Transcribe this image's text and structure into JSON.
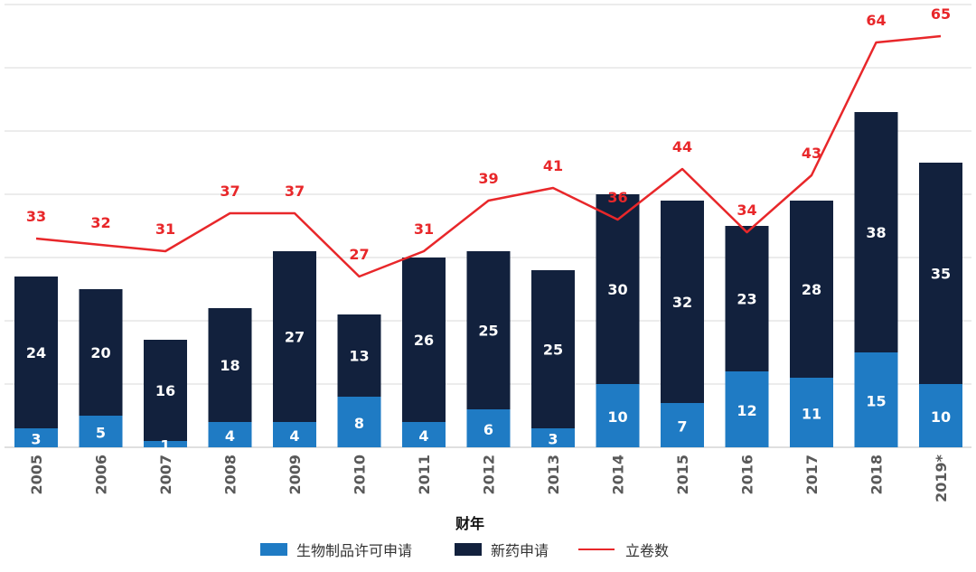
{
  "chart_data": {
    "type": "bar",
    "stacked": true,
    "xlabel": "财年",
    "categories": [
      "2005",
      "2006",
      "2007",
      "2008",
      "2009",
      "2010",
      "2011",
      "2012",
      "2013",
      "2014",
      "2015",
      "2016",
      "2017",
      "2018",
      "2019*"
    ],
    "series": [
      {
        "name": "生物制品许可申请",
        "type": "bar",
        "color": "#1f7bc4",
        "values": [
          3,
          5,
          1,
          4,
          4,
          8,
          4,
          6,
          3,
          10,
          7,
          12,
          11,
          15,
          10
        ]
      },
      {
        "name": "新药申请",
        "type": "bar",
        "color": "#12213d",
        "values": [
          24,
          20,
          16,
          18,
          27,
          13,
          26,
          25,
          25,
          30,
          32,
          23,
          28,
          38,
          35
        ]
      },
      {
        "name": "立卷数",
        "type": "line",
        "color": "#e8272a",
        "values": [
          33,
          32,
          31,
          37,
          37,
          27,
          31,
          39,
          41,
          36,
          44,
          34,
          43,
          64,
          65
        ]
      }
    ],
    "ylim": [
      0,
      70
    ],
    "grid": true,
    "legend_position": "bottom"
  }
}
